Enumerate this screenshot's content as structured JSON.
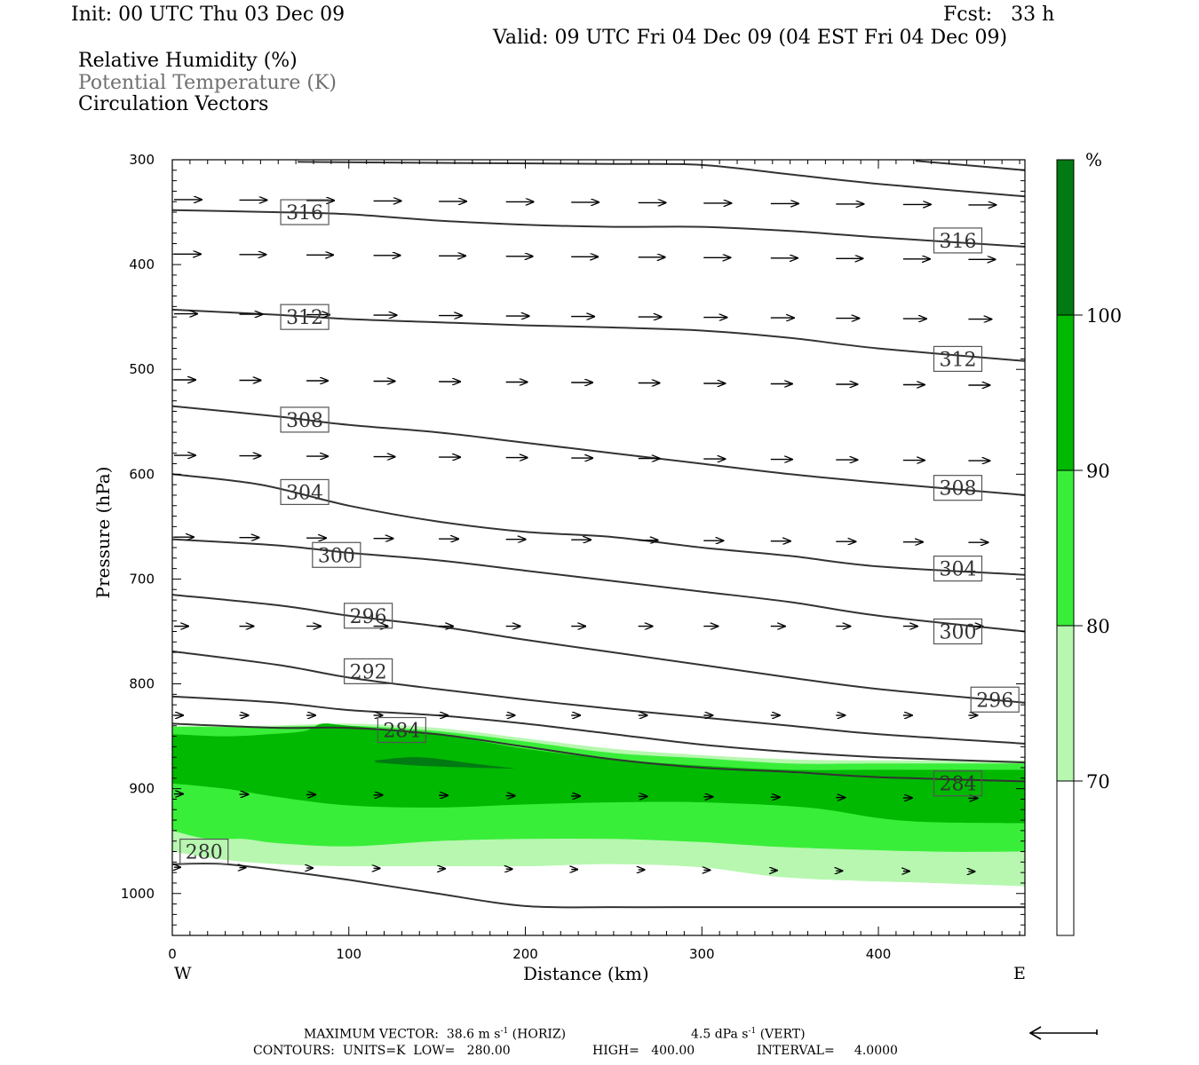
{
  "header": {
    "init": "Init: 00 UTC Thu 03 Dec 09",
    "fcst": "Fcst:   33 h",
    "valid": "Valid: 09 UTC Fri 04 Dec 09 (04 EST Fri 04 Dec 09)"
  },
  "legend": {
    "rh": "Relative Humidity (%)",
    "theta": "Potential Temperature (K)",
    "vectors": "Circulation Vectors"
  },
  "colors": {
    "c70": "#b7f7b0",
    "c80": "#39ee39",
    "c90": "#00b900",
    "c100": "#007a12",
    "contour": "#333333",
    "theta_legend": "#6f6f6f"
  },
  "footer": {
    "max_vector_label": "MAXIMUM VECTOR:",
    "horiz": "38.6 m s",
    "horiz_unit": "(HORIZ)",
    "vert": "4.5 dPa s",
    "vert_unit": "(VERT)",
    "exp": "-1",
    "contours_label": "CONTOURS:",
    "units": "UNITS=K",
    "low": "LOW=   280.00",
    "high": "HIGH=   400.00",
    "interval": "INTERVAL=     4.0000"
  },
  "chart_data": {
    "type": "cross-section",
    "xlabel": "Distance (km)",
    "ylabel": "Pressure (hPa)",
    "xlim": [
      0,
      483
    ],
    "ylim": [
      1040,
      300
    ],
    "xticks": [
      0,
      100,
      200,
      300,
      400
    ],
    "yticks": [
      300,
      400,
      500,
      600,
      700,
      800,
      900,
      1000
    ],
    "x_end_labels": {
      "left": "W",
      "right": "E"
    },
    "colorbar": {
      "unit": "%",
      "levels": [
        70,
        80,
        90,
        100
      ],
      "labels": [
        "70",
        "80",
        "90",
        "100"
      ]
    },
    "rh_bands": [
      {
        "level": 70,
        "color": "#b7f7b0",
        "top": [
          [
            0,
            840
          ],
          [
            50,
            840
          ],
          [
            100,
            838
          ],
          [
            150,
            842
          ],
          [
            200,
            852
          ],
          [
            250,
            862
          ],
          [
            300,
            868
          ],
          [
            350,
            872
          ],
          [
            400,
            873
          ],
          [
            483,
            873
          ]
        ],
        "bottom": [
          [
            483,
            993
          ],
          [
            430,
            990
          ],
          [
            350,
            985
          ],
          [
            300,
            975
          ],
          [
            250,
            972
          ],
          [
            200,
            974
          ],
          [
            150,
            974
          ],
          [
            100,
            974
          ],
          [
            60,
            972
          ],
          [
            30,
            968
          ],
          [
            0,
            960
          ]
        ]
      },
      {
        "level": 80,
        "color": "#39ee39",
        "top": [
          [
            0,
            841
          ],
          [
            50,
            841
          ],
          [
            100,
            840
          ],
          [
            150,
            845
          ],
          [
            200,
            855
          ],
          [
            250,
            866
          ],
          [
            300,
            871
          ],
          [
            350,
            876
          ],
          [
            400,
            876
          ],
          [
            483,
            876
          ]
        ],
        "bottom": [
          [
            483,
            960
          ],
          [
            430,
            960
          ],
          [
            350,
            956
          ],
          [
            300,
            951
          ],
          [
            250,
            948
          ],
          [
            200,
            948
          ],
          [
            150,
            950
          ],
          [
            100,
            955
          ],
          [
            60,
            952
          ],
          [
            40,
            948
          ],
          [
            20,
            948
          ],
          [
            0,
            940
          ]
        ]
      },
      {
        "level": 90,
        "color": "#00b900",
        "top": [
          [
            0,
            848
          ],
          [
            30,
            850
          ],
          [
            55,
            848
          ],
          [
            75,
            845
          ],
          [
            85,
            838
          ],
          [
            100,
            840
          ],
          [
            150,
            848
          ],
          [
            200,
            862
          ],
          [
            250,
            872
          ],
          [
            300,
            878
          ],
          [
            350,
            882
          ],
          [
            400,
            882
          ],
          [
            483,
            882
          ]
        ],
        "bottom": [
          [
            483,
            933
          ],
          [
            430,
            932
          ],
          [
            400,
            928
          ],
          [
            360,
            918
          ],
          [
            300,
            913
          ],
          [
            250,
            913
          ],
          [
            200,
            915
          ],
          [
            150,
            918
          ],
          [
            100,
            916
          ],
          [
            60,
            908
          ],
          [
            30,
            900
          ],
          [
            0,
            895
          ]
        ]
      },
      {
        "level": 100,
        "color": "#007a12",
        "top": [
          [
            115,
            873
          ],
          [
            140,
            870
          ],
          [
            170,
            876
          ],
          [
            195,
            881
          ]
        ],
        "bottom": [
          [
            195,
            881
          ],
          [
            170,
            880
          ],
          [
            140,
            878
          ],
          [
            115,
            875
          ]
        ]
      }
    ],
    "theta_contours": [
      {
        "value": 280,
        "points": [
          [
            0,
            972
          ],
          [
            30,
            972
          ],
          [
            70,
            980
          ],
          [
            100,
            987
          ],
          [
            150,
            1000
          ],
          [
            200,
            1012
          ],
          [
            250,
            1013
          ],
          [
            300,
            1013
          ],
          [
            400,
            1013
          ],
          [
            483,
            1013
          ]
        ],
        "labels": [
          {
            "x": 18,
            "p": 960,
            "text": "280"
          }
        ]
      },
      {
        "value": 284,
        "points": [
          [
            0,
            838
          ],
          [
            60,
            842
          ],
          [
            100,
            842
          ],
          [
            150,
            848
          ],
          [
            200,
            860
          ],
          [
            250,
            872
          ],
          [
            300,
            880
          ],
          [
            350,
            884
          ],
          [
            400,
            889
          ],
          [
            483,
            893
          ]
        ],
        "labels": [
          {
            "x": 130,
            "p": 844,
            "text": "284"
          },
          {
            "x": 445,
            "p": 895,
            "text": "284"
          }
        ]
      },
      {
        "value": 288,
        "points": [
          [
            0,
            812
          ],
          [
            60,
            818
          ],
          [
            100,
            825
          ],
          [
            150,
            830
          ],
          [
            200,
            838
          ],
          [
            250,
            848
          ],
          [
            300,
            858
          ],
          [
            350,
            865
          ],
          [
            400,
            870
          ],
          [
            483,
            875
          ]
        ],
        "labels": []
      },
      {
        "value": 292,
        "points": [
          [
            0,
            769
          ],
          [
            60,
            782
          ],
          [
            100,
            794
          ],
          [
            150,
            805
          ],
          [
            200,
            815
          ],
          [
            250,
            824
          ],
          [
            300,
            832
          ],
          [
            350,
            840
          ],
          [
            400,
            848
          ],
          [
            483,
            857
          ]
        ],
        "labels": [
          {
            "x": 111,
            "p": 788,
            "text": "292"
          }
        ]
      },
      {
        "value": 296,
        "points": [
          [
            0,
            715
          ],
          [
            60,
            725
          ],
          [
            100,
            735
          ],
          [
            150,
            745
          ],
          [
            200,
            758
          ],
          [
            250,
            770
          ],
          [
            300,
            782
          ],
          [
            350,
            794
          ],
          [
            400,
            805
          ],
          [
            483,
            818
          ]
        ],
        "labels": [
          {
            "x": 111,
            "p": 735,
            "text": "296"
          },
          {
            "x": 466,
            "p": 815,
            "text": "296"
          }
        ]
      },
      {
        "value": 300,
        "points": [
          [
            0,
            662
          ],
          [
            60,
            668
          ],
          [
            100,
            675
          ],
          [
            150,
            682
          ],
          [
            200,
            692
          ],
          [
            250,
            702
          ],
          [
            300,
            712
          ],
          [
            350,
            722
          ],
          [
            400,
            735
          ],
          [
            483,
            750
          ]
        ],
        "labels": [
          {
            "x": 93,
            "p": 677,
            "text": "300"
          },
          {
            "x": 445,
            "p": 750,
            "text": "300"
          }
        ]
      },
      {
        "value": 304,
        "points": [
          [
            0,
            600
          ],
          [
            50,
            610
          ],
          [
            100,
            630
          ],
          [
            150,
            645
          ],
          [
            200,
            655
          ],
          [
            250,
            660
          ],
          [
            300,
            670
          ],
          [
            350,
            678
          ],
          [
            400,
            688
          ],
          [
            483,
            696
          ]
        ],
        "labels": [
          {
            "x": 75,
            "p": 617,
            "text": "304"
          },
          {
            "x": 445,
            "p": 690,
            "text": "304"
          }
        ]
      },
      {
        "value": 308,
        "points": [
          [
            0,
            535
          ],
          [
            60,
            545
          ],
          [
            100,
            553
          ],
          [
            150,
            560
          ],
          [
            200,
            570
          ],
          [
            250,
            580
          ],
          [
            300,
            590
          ],
          [
            350,
            600
          ],
          [
            400,
            608
          ],
          [
            483,
            620
          ]
        ],
        "labels": [
          {
            "x": 75,
            "p": 548,
            "text": "308"
          },
          {
            "x": 445,
            "p": 613,
            "text": "308"
          }
        ]
      },
      {
        "value": 312,
        "points": [
          [
            0,
            443
          ],
          [
            60,
            448
          ],
          [
            100,
            452
          ],
          [
            150,
            455
          ],
          [
            200,
            458
          ],
          [
            250,
            460
          ],
          [
            300,
            463
          ],
          [
            350,
            470
          ],
          [
            400,
            480
          ],
          [
            483,
            492
          ]
        ],
        "labels": [
          {
            "x": 75,
            "p": 450,
            "text": "312"
          },
          {
            "x": 445,
            "p": 490,
            "text": "312"
          }
        ]
      },
      {
        "value": 316,
        "points": [
          [
            0,
            348
          ],
          [
            60,
            350
          ],
          [
            100,
            352
          ],
          [
            150,
            358
          ],
          [
            200,
            362
          ],
          [
            250,
            364
          ],
          [
            300,
            364
          ],
          [
            350,
            368
          ],
          [
            400,
            374
          ],
          [
            483,
            383
          ]
        ],
        "labels": [
          {
            "x": 75,
            "p": 350,
            "text": "316"
          },
          {
            "x": 445,
            "p": 377,
            "text": "316"
          }
        ]
      },
      {
        "value": 320,
        "points": [
          [
            71,
            302
          ],
          [
            150,
            303
          ],
          [
            250,
            304
          ],
          [
            300,
            305
          ],
          [
            350,
            314
          ],
          [
            400,
            323
          ],
          [
            483,
            335
          ]
        ],
        "labels": []
      },
      {
        "value": 324,
        "points": [
          [
            421,
            301
          ],
          [
            483,
            310
          ]
        ],
        "labels": []
      }
    ],
    "vectors": [
      {
        "p": 338,
        "x": [
          0,
          37,
          75,
          113,
          150,
          188,
          225,
          263,
          300,
          338,
          375,
          413,
          450
        ],
        "len": 31
      },
      {
        "p": 390,
        "x": [
          0,
          37,
          75,
          113,
          150,
          188,
          225,
          263,
          300,
          338,
          375,
          413,
          450
        ],
        "len": 30
      },
      {
        "p": 447,
        "x": [
          0,
          37,
          75,
          113,
          150,
          188,
          225,
          263,
          300,
          338,
          375,
          413,
          450
        ],
        "len": 26
      },
      {
        "p": 510,
        "x": [
          0,
          37,
          75,
          113,
          150,
          188,
          225,
          263,
          300,
          338,
          375,
          413,
          450
        ],
        "len": 24
      },
      {
        "p": 582,
        "x": [
          0,
          37,
          75,
          113,
          150,
          188,
          225,
          263,
          300,
          338,
          375,
          413,
          450
        ],
        "len": 24
      },
      {
        "p": 660,
        "x": [
          0,
          37,
          75,
          113,
          150,
          188,
          225,
          263,
          300,
          338,
          375,
          413,
          450
        ],
        "len": 22
      },
      {
        "p": 745,
        "x": [
          0,
          37,
          75,
          113,
          150,
          188,
          225,
          263,
          300,
          338,
          375,
          413,
          450
        ],
        "len": 16
      },
      {
        "p": 830,
        "x": [
          0,
          37,
          75,
          113,
          150,
          188,
          225,
          263,
          300,
          338,
          375,
          413,
          450
        ],
        "len": 10
      },
      {
        "p": 905,
        "x": [
          0,
          37,
          75,
          113,
          150,
          188,
          225,
          263,
          300,
          338,
          375,
          413,
          450
        ],
        "len": 10
      },
      {
        "p": 975,
        "x": [
          0,
          37,
          75,
          113,
          150,
          188,
          225,
          263,
          300,
          338,
          375,
          413,
          450
        ],
        "len": 7
      }
    ],
    "max_vector": "38.6 m s-1 (HORIZ) 4.5 dPa s-1 (VERT)"
  }
}
